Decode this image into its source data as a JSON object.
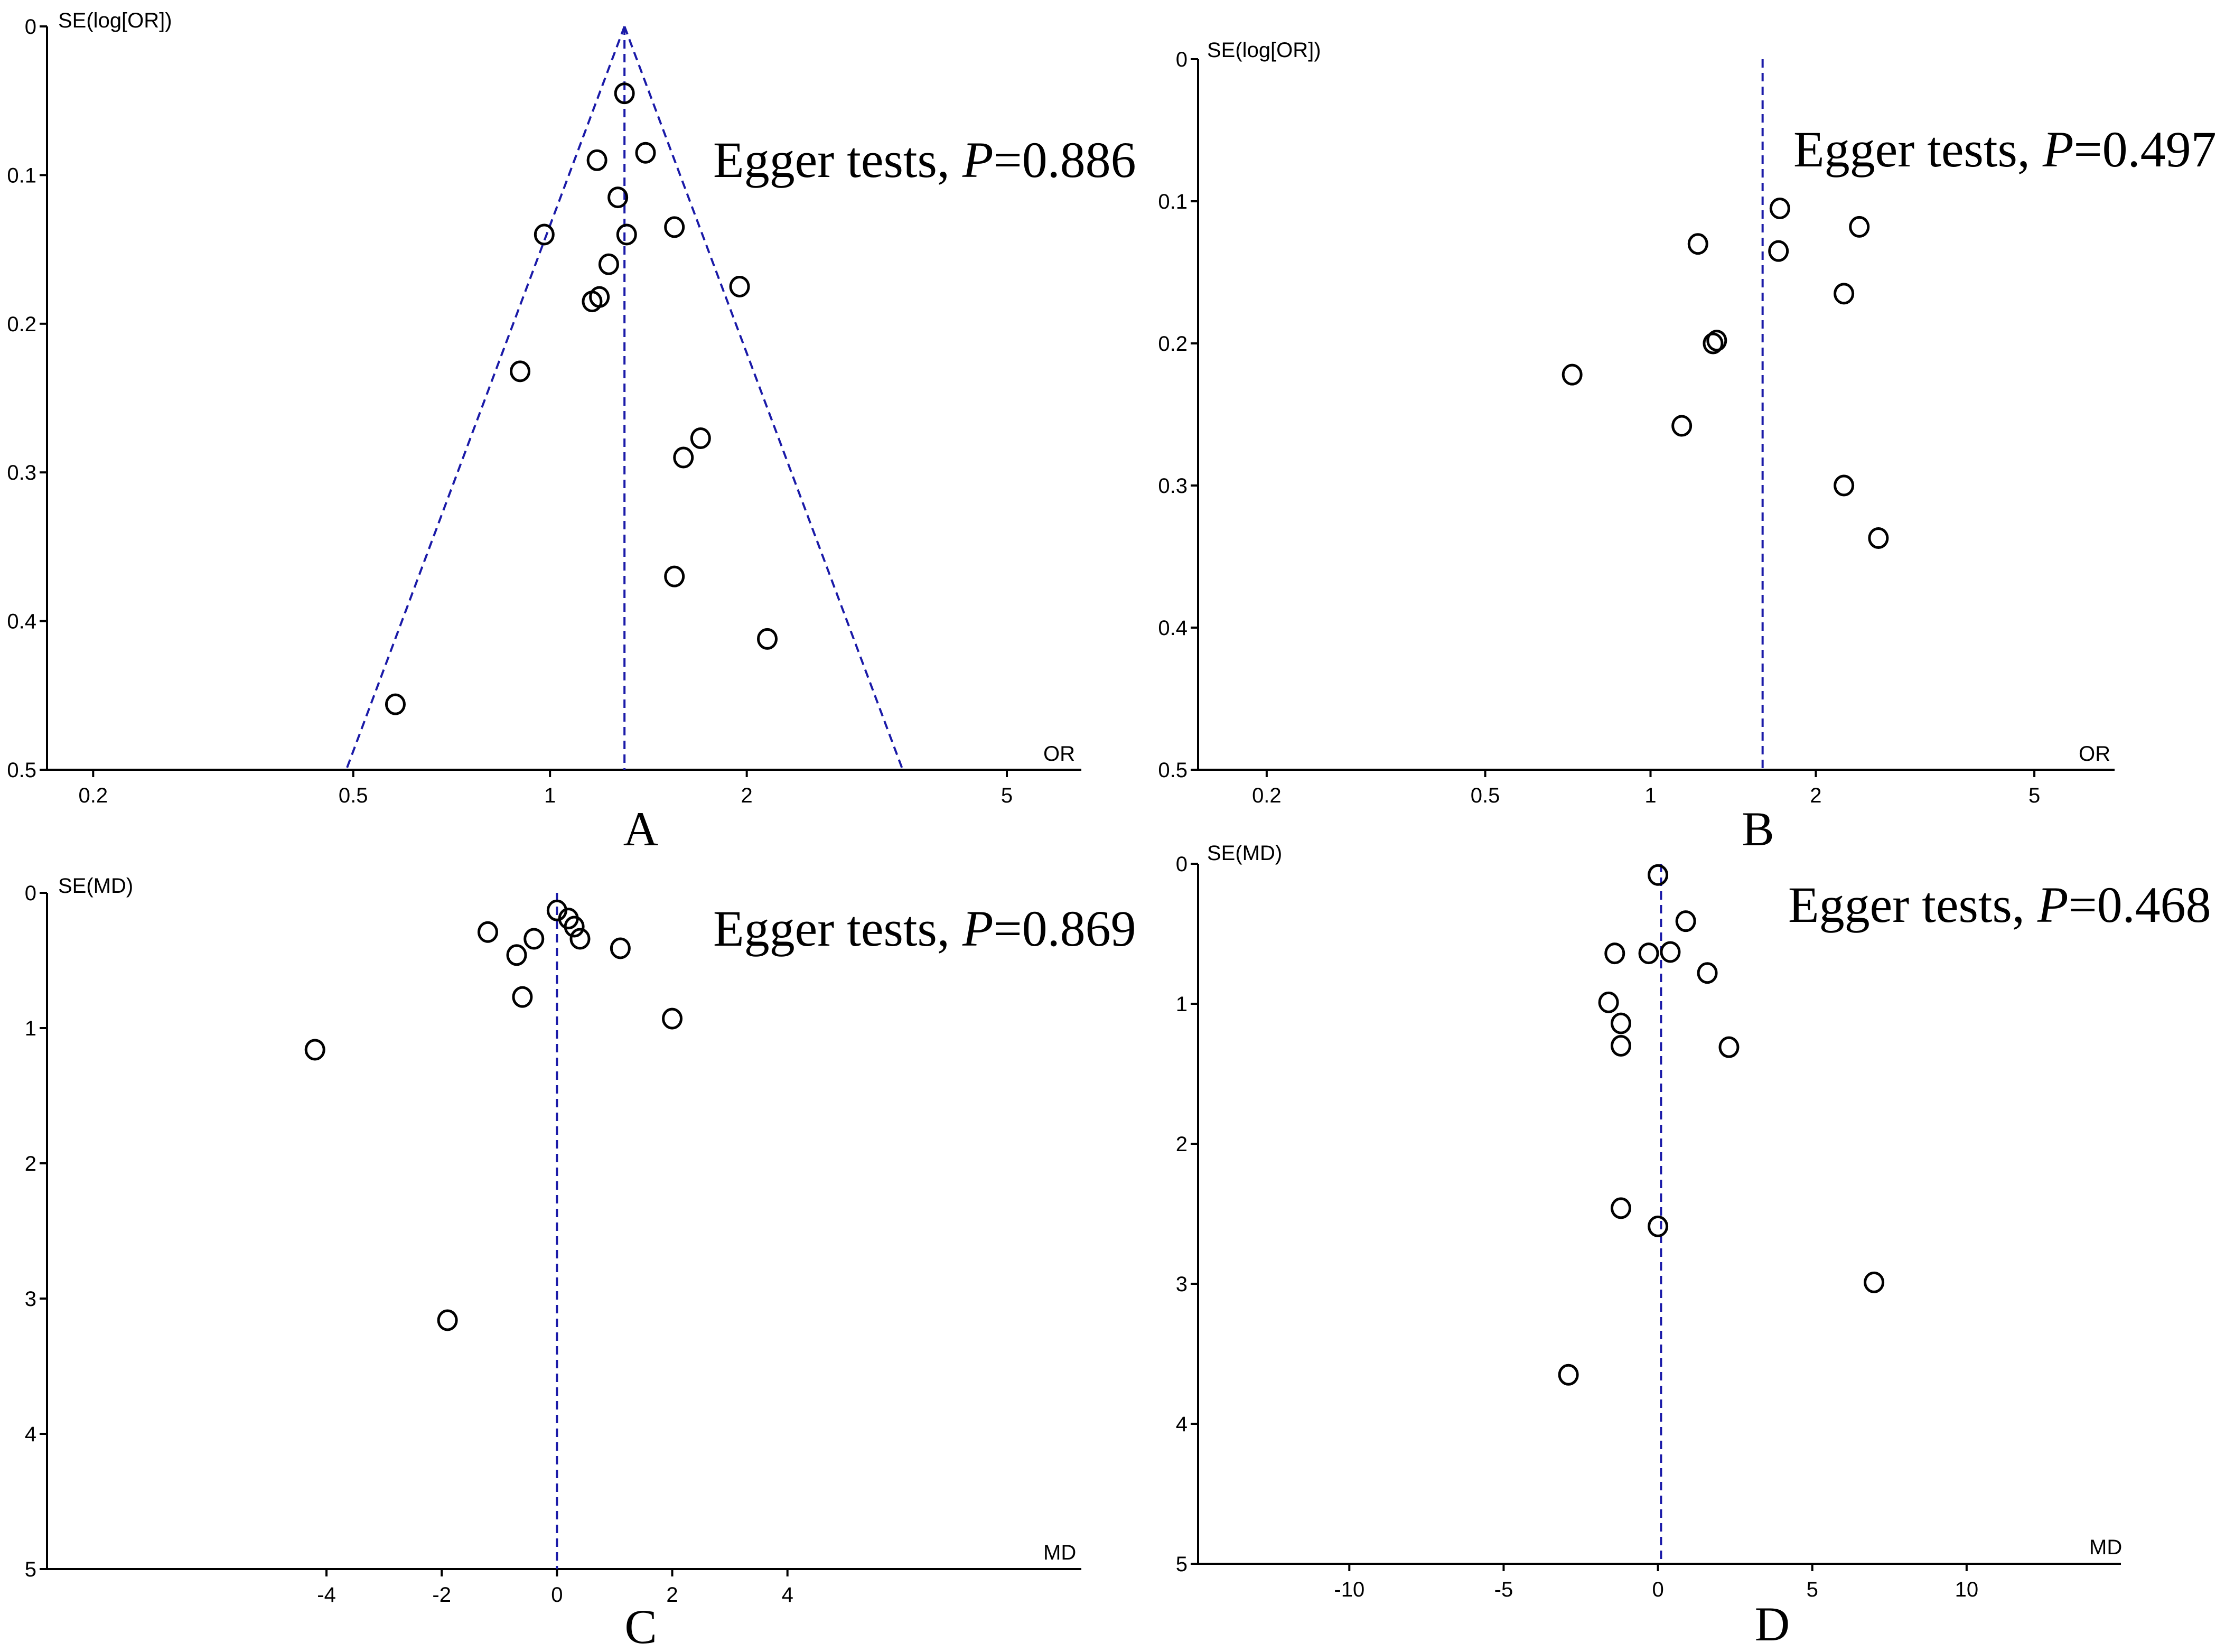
{
  "chart_data": [
    {
      "type": "scatter",
      "panel_label": "A",
      "ylabel": "SE(log[OR])",
      "xlabel": "OR",
      "x_scale": "log",
      "xlim": [
        0.17,
        6.5
      ],
      "ylim": [
        0,
        0.5
      ],
      "y_reversed": true,
      "x_ticks": [
        0.2,
        0.5,
        1,
        2,
        5
      ],
      "x_tick_labels": [
        "0.2",
        "0.5",
        "1",
        "2",
        "5"
      ],
      "y_ticks": [
        0,
        0.1,
        0.2,
        0.3,
        0.4,
        0.5
      ],
      "y_tick_labels": [
        "0",
        "0.1",
        "0.2",
        "0.3",
        "0.4",
        "0.5"
      ],
      "reference_x": 1.3,
      "funnel": true,
      "annotation": {
        "prefix": "Egger tests, ",
        "italic": "P",
        "suffix": "=0.886"
      },
      "points": [
        {
          "x": 1.3,
          "y": 0.045
        },
        {
          "x": 1.18,
          "y": 0.09
        },
        {
          "x": 1.4,
          "y": 0.085
        },
        {
          "x": 1.27,
          "y": 0.115
        },
        {
          "x": 0.98,
          "y": 0.14
        },
        {
          "x": 1.31,
          "y": 0.14
        },
        {
          "x": 1.55,
          "y": 0.135
        },
        {
          "x": 1.23,
          "y": 0.16
        },
        {
          "x": 1.95,
          "y": 0.175
        },
        {
          "x": 1.19,
          "y": 0.182
        },
        {
          "x": 1.16,
          "y": 0.185
        },
        {
          "x": 0.9,
          "y": 0.232
        },
        {
          "x": 1.7,
          "y": 0.277
        },
        {
          "x": 1.6,
          "y": 0.29
        },
        {
          "x": 1.55,
          "y": 0.37
        },
        {
          "x": 2.15,
          "y": 0.412
        },
        {
          "x": 0.58,
          "y": 0.456
        }
      ]
    },
    {
      "type": "scatter",
      "panel_label": "B",
      "ylabel": "SE(log[OR])",
      "xlabel": "OR",
      "x_scale": "log",
      "xlim": [
        0.15,
        7.0
      ],
      "ylim": [
        0,
        0.5
      ],
      "y_reversed": true,
      "x_ticks": [
        0.2,
        0.5,
        1,
        2,
        5
      ],
      "x_tick_labels": [
        "0.2",
        "0.5",
        "1",
        "2",
        "5"
      ],
      "y_ticks": [
        0,
        0.1,
        0.2,
        0.3,
        0.4,
        0.5
      ],
      "y_tick_labels": [
        "0",
        "0.1",
        "0.2",
        "0.3",
        "0.4",
        "0.5"
      ],
      "reference_x": 1.6,
      "funnel": false,
      "annotation": {
        "prefix": "Egger tests, ",
        "italic": "P",
        "suffix": "=0.497"
      },
      "points": [
        {
          "x": 1.72,
          "y": 0.105
        },
        {
          "x": 2.4,
          "y": 0.118
        },
        {
          "x": 1.22,
          "y": 0.13
        },
        {
          "x": 1.71,
          "y": 0.135
        },
        {
          "x": 2.25,
          "y": 0.165
        },
        {
          "x": 1.32,
          "y": 0.198
        },
        {
          "x": 1.3,
          "y": 0.2
        },
        {
          "x": 0.72,
          "y": 0.222
        },
        {
          "x": 1.14,
          "y": 0.258
        },
        {
          "x": 2.25,
          "y": 0.3
        },
        {
          "x": 2.6,
          "y": 0.337
        }
      ]
    },
    {
      "type": "scatter",
      "panel_label": "C",
      "ylabel": "SE(MD)",
      "xlabel": "MD",
      "x_scale": "linear",
      "xlim": [
        -8.85,
        9.1
      ],
      "ylim": [
        0,
        5
      ],
      "y_reversed": true,
      "x_ticks": [
        -4,
        -2,
        0,
        2,
        4
      ],
      "x_tick_labels": [
        "-4",
        "-2",
        "0",
        "2",
        "4"
      ],
      "y_ticks": [
        0,
        1,
        2,
        3,
        4,
        5
      ],
      "y_tick_labels": [
        "0",
        "1",
        "2",
        "3",
        "4",
        "5"
      ],
      "reference_x": 0,
      "funnel": false,
      "annotation": {
        "prefix": "Egger tests, ",
        "italic": "P",
        "suffix": "=0.869"
      },
      "points": [
        {
          "x": 0.0,
          "y": 0.13
        },
        {
          "x": 0.2,
          "y": 0.19
        },
        {
          "x": 0.3,
          "y": 0.25
        },
        {
          "x": -1.2,
          "y": 0.29
        },
        {
          "x": -0.4,
          "y": 0.34
        },
        {
          "x": 0.4,
          "y": 0.34
        },
        {
          "x": 1.1,
          "y": 0.41
        },
        {
          "x": -0.7,
          "y": 0.46
        },
        {
          "x": -0.6,
          "y": 0.77
        },
        {
          "x": 2.0,
          "y": 0.93
        },
        {
          "x": -4.2,
          "y": 1.16
        },
        {
          "x": -1.9,
          "y": 3.16
        }
      ]
    },
    {
      "type": "scatter",
      "panel_label": "D",
      "ylabel": "SE(MD)",
      "xlabel": "MD",
      "x_scale": "linear",
      "xlim": [
        -14.9,
        15.0
      ],
      "ylim": [
        0,
        5
      ],
      "y_reversed": true,
      "x_ticks": [
        -10,
        -5,
        0,
        5,
        10
      ],
      "x_tick_labels": [
        "-10",
        "-5",
        "0",
        "5",
        "10"
      ],
      "y_ticks": [
        0,
        1,
        2,
        3,
        4,
        5
      ],
      "y_tick_labels": [
        "0",
        "1",
        "2",
        "3",
        "4",
        "5"
      ],
      "reference_x": 0.1,
      "funnel": false,
      "annotation": {
        "prefix": "Egger tests, ",
        "italic": "P",
        "suffix": "=0.468"
      },
      "points": [
        {
          "x": 0.0,
          "y": 0.08
        },
        {
          "x": 0.9,
          "y": 0.41
        },
        {
          "x": -1.4,
          "y": 0.64
        },
        {
          "x": -0.3,
          "y": 0.64
        },
        {
          "x": 0.4,
          "y": 0.63
        },
        {
          "x": 1.6,
          "y": 0.78
        },
        {
          "x": -1.6,
          "y": 0.99
        },
        {
          "x": -1.2,
          "y": 1.14
        },
        {
          "x": -1.2,
          "y": 1.3
        },
        {
          "x": 2.3,
          "y": 1.31
        },
        {
          "x": -1.2,
          "y": 2.46
        },
        {
          "x": 0.0,
          "y": 2.59
        },
        {
          "x": 7.0,
          "y": 2.99
        },
        {
          "x": -2.9,
          "y": 3.65
        }
      ]
    }
  ]
}
